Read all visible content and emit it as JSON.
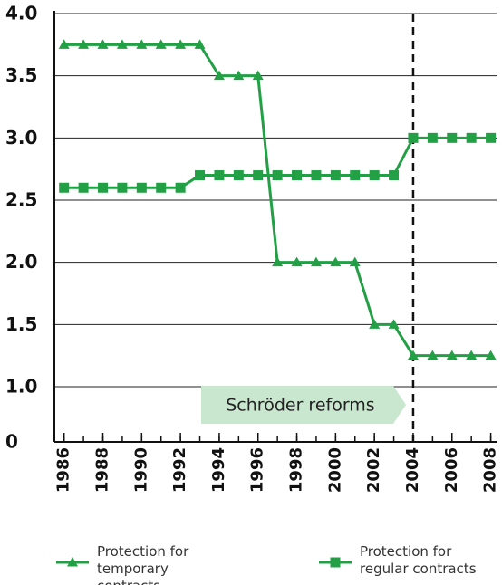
{
  "chart_data": {
    "type": "line",
    "x": [
      1986,
      1987,
      1988,
      1989,
      1990,
      1991,
      1992,
      1993,
      1994,
      1995,
      1996,
      1997,
      1998,
      1999,
      2000,
      2001,
      2002,
      2003,
      2004,
      2005,
      2006,
      2007,
      2008
    ],
    "series": [
      {
        "name": "Protection for temporary contracts",
        "color": "#23a046",
        "marker": "triangle",
        "values": [
          3.75,
          3.75,
          3.75,
          3.75,
          3.75,
          3.75,
          3.75,
          3.75,
          3.5,
          3.5,
          3.5,
          2.0,
          2.0,
          2.0,
          2.0,
          2.0,
          1.5,
          1.5,
          1.25,
          1.25,
          1.25,
          1.25,
          1.25
        ]
      },
      {
        "name": "Protection for regular contracts",
        "color": "#23a046",
        "marker": "square",
        "values": [
          2.6,
          2.6,
          2.6,
          2.6,
          2.6,
          2.6,
          2.6,
          2.7,
          2.7,
          2.7,
          2.7,
          2.7,
          2.7,
          2.7,
          2.7,
          2.7,
          2.7,
          2.7,
          3.0,
          3.0,
          3.0,
          3.0,
          3.0
        ]
      }
    ],
    "xlim": [
      1985.5,
      2008.3
    ],
    "xticks": [
      1986,
      1988,
      1990,
      1992,
      1994,
      1996,
      1998,
      2000,
      2002,
      2004,
      2006,
      2008
    ],
    "ylim": [
      0,
      4.0
    ],
    "yticks": [
      0,
      {
        "value": 1.0,
        "label": "1.0"
      },
      1.5,
      {
        "value": 2.0,
        "label": "2.0"
      },
      2.5,
      {
        "value": 3.0,
        "label": "3.0"
      },
      3.5,
      {
        "value": 4.0,
        "label": "4.0"
      }
    ],
    "grid": true,
    "annotation": {
      "text": "Schröder reforms",
      "x": 2004
    }
  }
}
